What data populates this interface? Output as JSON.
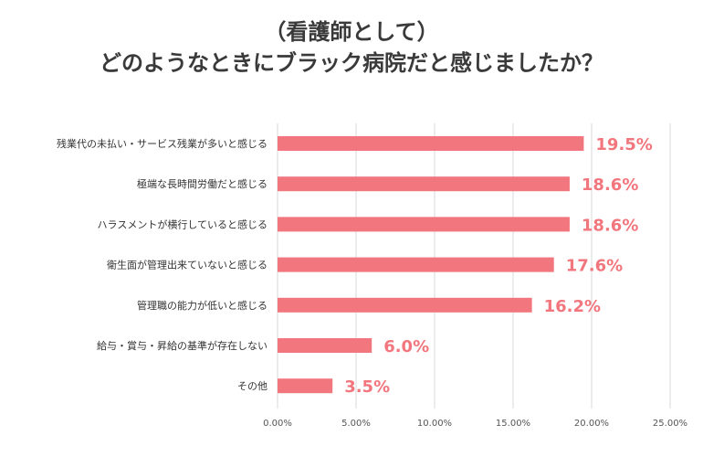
{
  "chart_data": {
    "type": "bar",
    "orientation": "horizontal",
    "title_line1": "（看護師として）",
    "title_line2": "どのようなときにブラック病院だと感じましたか？",
    "categories": [
      "残業代の未払い・サービス残業が多いと感じる",
      "極端な長時間労働だと感じる",
      "ハラスメントが横行していると感じる",
      "衛生面が管理出来ていないと感じる",
      "管理職の能力が低いと感じる",
      "給与・賞与・昇給の基準が存在しない",
      "その他"
    ],
    "values": [
      19.5,
      18.6,
      18.6,
      17.6,
      16.2,
      6.0,
      3.5
    ],
    "value_labels": [
      "19.5%",
      "18.6%",
      "18.6%",
      "17.6%",
      "16.2%",
      "6.0%",
      "3.5%"
    ],
    "x_ticks": [
      0,
      5,
      10,
      15,
      20,
      25
    ],
    "x_tick_labels": [
      "0.00%",
      "5.00%",
      "10.00%",
      "15.00%",
      "20.00%",
      "25.00%"
    ],
    "xlim": [
      0,
      25
    ],
    "grid": true,
    "bar_color": "#f2767d",
    "label_color": "#f2767d"
  }
}
